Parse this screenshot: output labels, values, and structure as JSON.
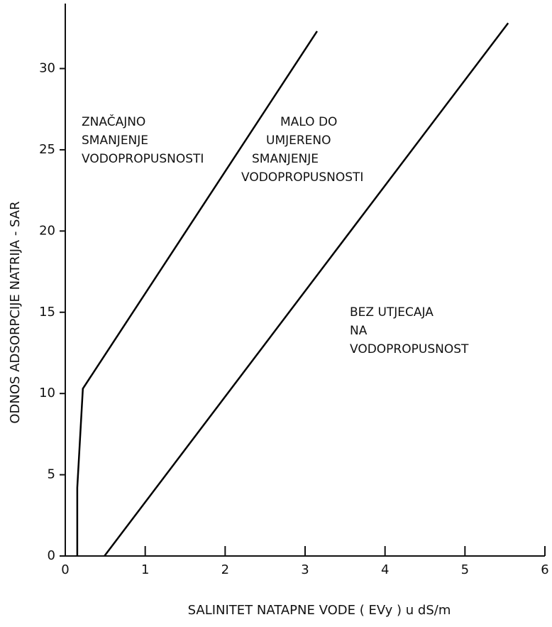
{
  "chart_data": {
    "type": "line",
    "x_label": "SALINITET NATAPNE VODE ( EVy )   u   dS/m",
    "y_label": "ODNOS  ADSORPCIJE  NATRIJA - SAR",
    "xlim": [
      0,
      6
    ],
    "xticks": [
      0,
      1,
      2,
      3,
      4,
      5,
      6
    ],
    "ylim": [
      0,
      34
    ],
    "yticks": [
      0,
      5,
      10,
      15,
      20,
      25,
      30
    ],
    "grid": false,
    "series": [
      {
        "color": "#000000",
        "x": [
          0.15,
          0.15,
          0.22,
          3.15
        ],
        "values": [
          0,
          4.2,
          10.3,
          32.3
        ]
      },
      {
        "color": "#000000",
        "x": [
          0.49,
          5.54
        ],
        "values": [
          0,
          32.8
        ]
      }
    ],
    "annotations": [
      [
        "ZNAČAJNO",
        "SMANJENJE",
        "VODOPROPUSNOSTI"
      ],
      [
        "MALO  DO",
        "UMJERENO",
        "SMANJENJE",
        "VODOPROPUSNOSTI"
      ],
      [
        "BEZ   UTJECAJA",
        "NA",
        "VODOPROPUSNOST"
      ]
    ]
  }
}
